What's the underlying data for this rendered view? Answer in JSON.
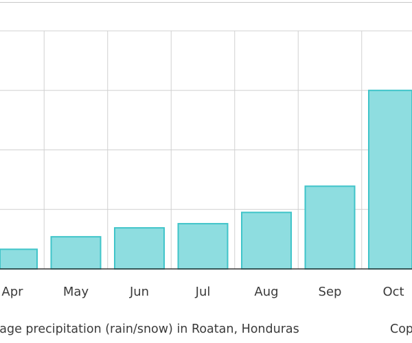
{
  "chart_data": {
    "type": "bar",
    "categories": [
      "Apr",
      "May",
      "Jun",
      "Jul",
      "Aug",
      "Sep",
      "Oct"
    ],
    "values": [
      33,
      54,
      69,
      76,
      95,
      139,
      300
    ],
    "title": "",
    "xlabel": "",
    "ylabel": "",
    "ylim": [
      0,
      400
    ],
    "grid": true,
    "bar_color": "#8edde0",
    "bar_edge_color": "#3fc4c9"
  },
  "caption": {
    "text": "Average precipitation (rain/snow) in Roatan, Honduras",
    "copyright": "Copyright"
  }
}
